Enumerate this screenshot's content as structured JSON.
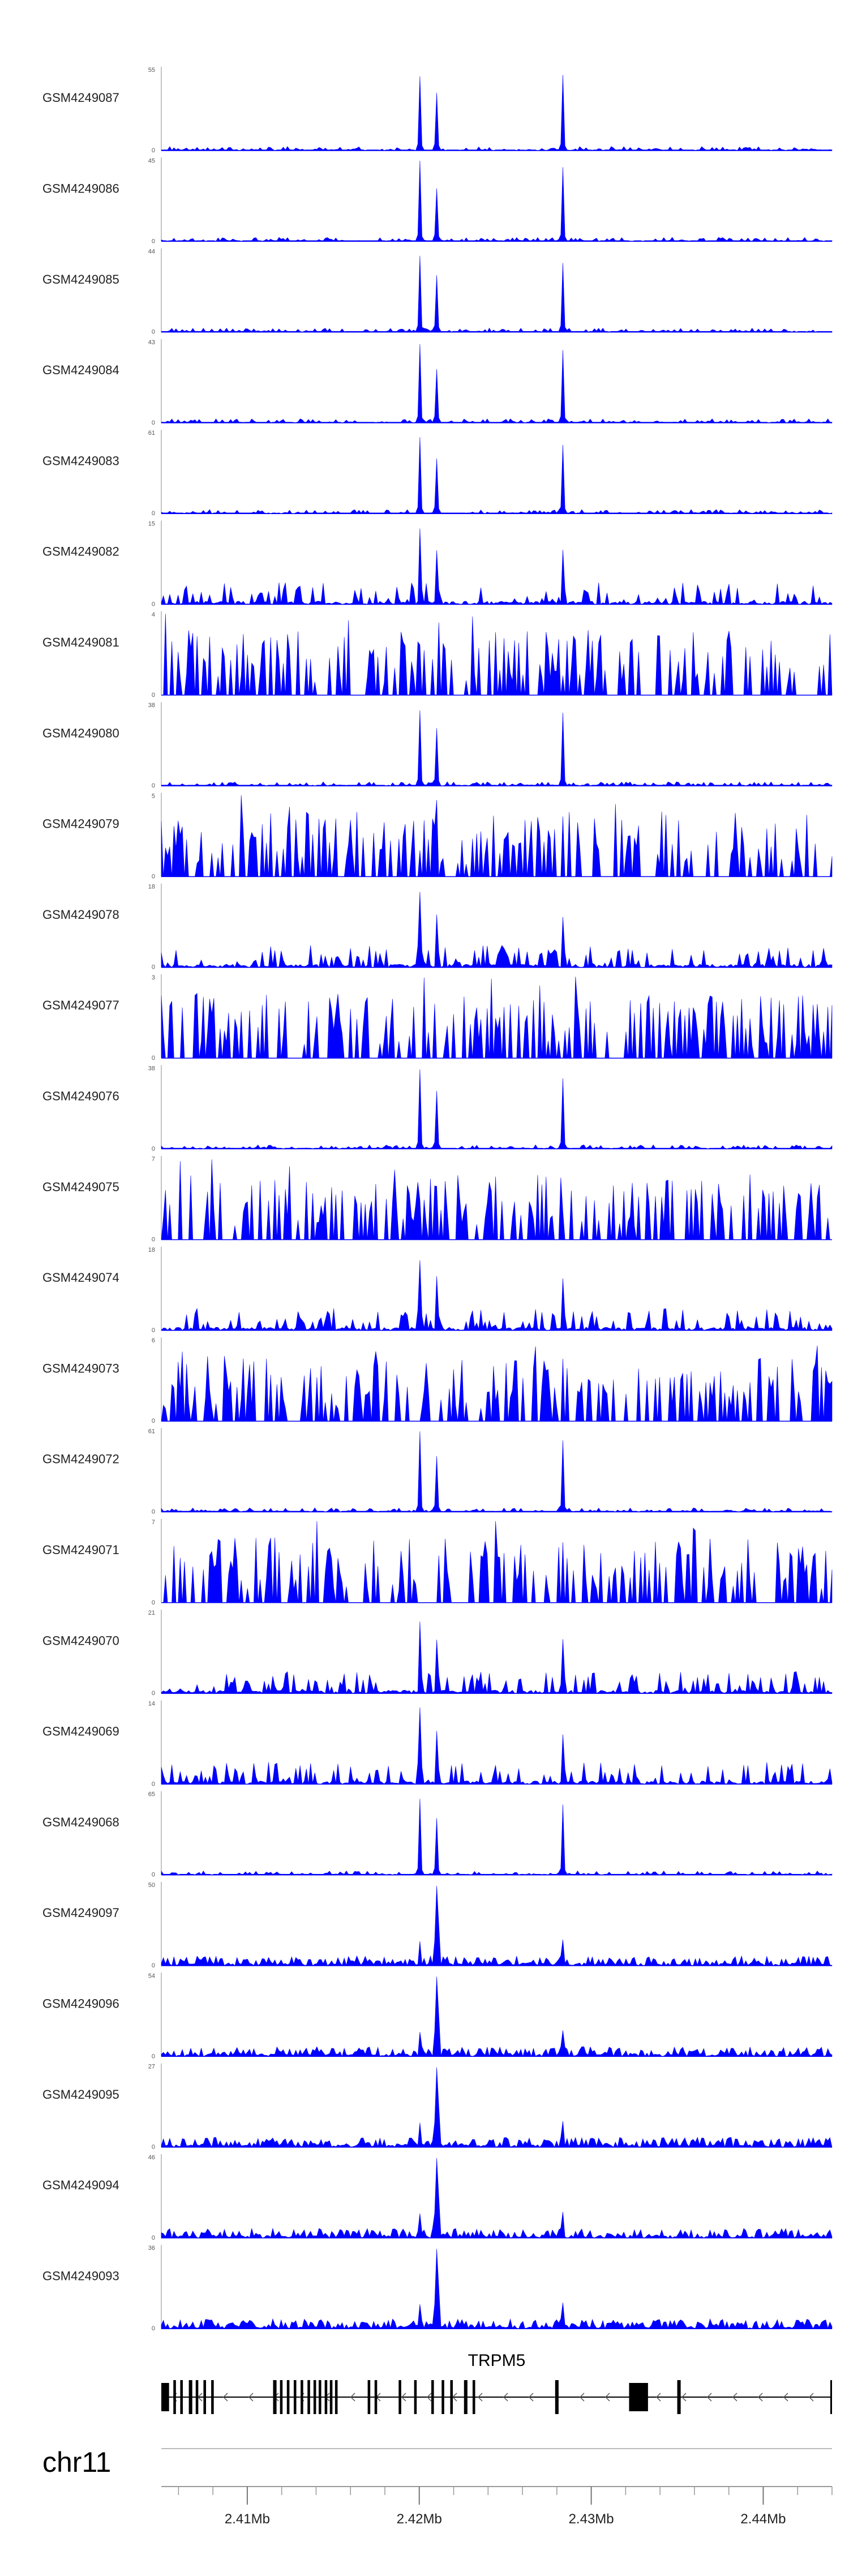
{
  "chart_data": {
    "type": "area",
    "title": "",
    "chromosome": "chr11",
    "x_range_bp": [
      2405000,
      2444000
    ],
    "fill_color": "#0000ff",
    "axis_ticks": [
      {
        "pos": 2410000,
        "label": "2.41Mb"
      },
      {
        "pos": 2420000,
        "label": "2.42Mb"
      },
      {
        "pos": 2430000,
        "label": "2.43Mb"
      },
      {
        "pos": 2440000,
        "label": "2.44Mb"
      }
    ],
    "gene": {
      "name": "TRPM5",
      "strand": "-",
      "exons_bp": [
        [
          2405000,
          2405450
        ],
        [
          2405700,
          2405850
        ],
        [
          2406100,
          2406250
        ],
        [
          2406600,
          2406800
        ],
        [
          2407000,
          2407150
        ],
        [
          2407450,
          2407600
        ],
        [
          2407900,
          2408050
        ],
        [
          2411500,
          2411700
        ],
        [
          2411900,
          2412050
        ],
        [
          2412300,
          2412450
        ],
        [
          2412700,
          2412850
        ],
        [
          2413100,
          2413250
        ],
        [
          2413500,
          2413650
        ],
        [
          2413850,
          2414000
        ],
        [
          2414150,
          2414300
        ],
        [
          2414500,
          2414650
        ],
        [
          2414800,
          2414950
        ],
        [
          2415100,
          2415250
        ],
        [
          2417000,
          2417150
        ],
        [
          2417400,
          2417550
        ],
        [
          2418800,
          2418950
        ],
        [
          2419700,
          2419850
        ],
        [
          2420700,
          2420850
        ],
        [
          2421300,
          2421450
        ],
        [
          2421800,
          2421950
        ],
        [
          2422600,
          2422800
        ],
        [
          2423100,
          2423250
        ],
        [
          2427900,
          2428100
        ],
        [
          2432200,
          2433300
        ],
        [
          2435000,
          2435200
        ],
        [
          2443900,
          2444000
        ]
      ]
    },
    "peaks_bp": [
      2420000,
      2421000,
      2428300
    ],
    "series": [
      {
        "name": "GSM4249087",
        "ymax": 55,
        "profile": "A"
      },
      {
        "name": "GSM4249086",
        "ymax": 45,
        "profile": "A"
      },
      {
        "name": "GSM4249085",
        "ymax": 44,
        "profile": "A"
      },
      {
        "name": "GSM4249084",
        "ymax": 43,
        "profile": "A"
      },
      {
        "name": "GSM4249083",
        "ymax": 61,
        "profile": "A"
      },
      {
        "name": "GSM4249082",
        "ymax": 15,
        "profile": "B"
      },
      {
        "name": "GSM4249081",
        "ymax": 4,
        "profile": "C"
      },
      {
        "name": "GSM4249080",
        "ymax": 38,
        "profile": "A"
      },
      {
        "name": "GSM4249079",
        "ymax": 5,
        "profile": "C"
      },
      {
        "name": "GSM4249078",
        "ymax": 18,
        "profile": "B"
      },
      {
        "name": "GSM4249077",
        "ymax": 3,
        "profile": "C"
      },
      {
        "name": "GSM4249076",
        "ymax": 38,
        "profile": "A"
      },
      {
        "name": "GSM4249075",
        "ymax": 7,
        "profile": "C"
      },
      {
        "name": "GSM4249074",
        "ymax": 18,
        "profile": "B"
      },
      {
        "name": "GSM4249073",
        "ymax": 6,
        "profile": "C"
      },
      {
        "name": "GSM4249072",
        "ymax": 61,
        "profile": "A"
      },
      {
        "name": "GSM4249071",
        "ymax": 7,
        "profile": "C"
      },
      {
        "name": "GSM4249070",
        "ymax": 21,
        "profile": "B"
      },
      {
        "name": "GSM4249069",
        "ymax": 14,
        "profile": "B"
      },
      {
        "name": "GSM4249068",
        "ymax": 65,
        "profile": "A"
      },
      {
        "name": "GSM4249097",
        "ymax": 50,
        "profile": "D"
      },
      {
        "name": "GSM4249096",
        "ymax": 54,
        "profile": "D"
      },
      {
        "name": "GSM4249095",
        "ymax": 27,
        "profile": "D"
      },
      {
        "name": "GSM4249094",
        "ymax": 46,
        "profile": "D"
      },
      {
        "name": "GSM4249093",
        "ymax": 36,
        "profile": "D"
      }
    ]
  }
}
